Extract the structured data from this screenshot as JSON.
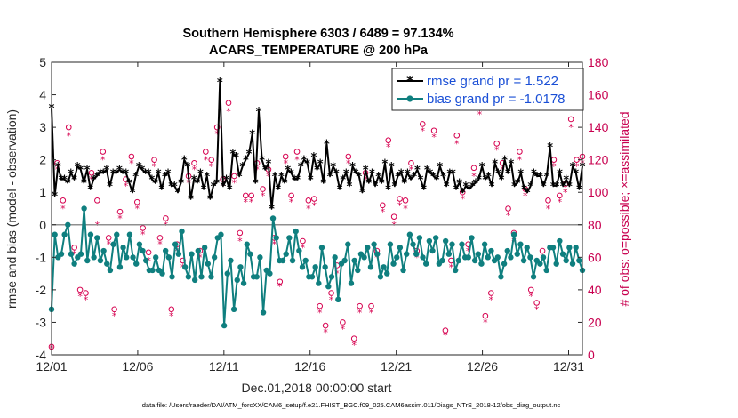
{
  "chart_data": {
    "type": "line",
    "title": "Southern Hemisphere 6303 / 6489 = 97.134%",
    "subtitle": "ACARS_TEMPERATURE @ 200 hPa",
    "xlabel": "Dec.01,2018 00:00:00 start",
    "ylabel": "rmse and bias (model - observation)",
    "ylabel_right": "# of obs: o=possible; ×=assimilated",
    "ylim": [
      -4,
      5
    ],
    "ylim_right": [
      0,
      180
    ],
    "x_tick_labels": [
      "12/01",
      "12/06",
      "12/11",
      "12/16",
      "12/21",
      "12/26",
      "12/31"
    ],
    "x_tick_days": [
      0,
      5,
      10,
      15,
      20,
      25,
      30
    ],
    "y_ticks": [
      "-4",
      "-3",
      "-2",
      "-1",
      "0",
      "1",
      "2",
      "3",
      "4",
      "5"
    ],
    "y_ticks_right": [
      "0",
      "20",
      "40",
      "60",
      "80",
      "100",
      "120",
      "140",
      "160",
      "180"
    ],
    "xlim_days": [
      0,
      30.8
    ],
    "legend": [
      "rmse grand pr = 1.522",
      "bias grand pr = -1.0178"
    ],
    "series": [
      {
        "name": "rmse grand pr = 1.522",
        "color": "#000000",
        "values": [
          3.6,
          0.9,
          1.8,
          1.4,
          1.4,
          1.3,
          1.6,
          1.4,
          1.8,
          1.7,
          1.3,
          1.7,
          1.1,
          1.4,
          1.5,
          1.6,
          1.6,
          1.7,
          1.2,
          1.6,
          1.6,
          1.7,
          1.6,
          1.6,
          1.3,
          1.0,
          1.5,
          1.8,
          1.7,
          1.6,
          1.6,
          1.4,
          1.3,
          1.6,
          1.1,
          1.5,
          1.6,
          1.2,
          1.2,
          1.0,
          1.3,
          2.0,
          1.8,
          0.8,
          1.4,
          1.3,
          1.6,
          1.1,
          1.5,
          0.8,
          1.2,
          1.3,
          4.4,
          1.2,
          1.4,
          1.1,
          2.2,
          2.1,
          1.5,
          1.8,
          2.0,
          2.2,
          2.8,
          1.3,
          3.5,
          2.0,
          1.7,
          1.9,
          0.5,
          1.5,
          1.1,
          1.5,
          1.3,
          1.7,
          1.6,
          1.4,
          1.4,
          1.8,
          2.0,
          1.9,
          1.4,
          2.1,
          1.7,
          1.9,
          1.3,
          2.5,
          1.5,
          1.8,
          1.6,
          1.1,
          1.4,
          1.6,
          1.2,
          1.8,
          1.6,
          1.5,
          1.0,
          1.7,
          1.3,
          1.6,
          1.2,
          1.5,
          1.3,
          1.9,
          1.1,
          1.8,
          1.2,
          1.5,
          1.6,
          1.3,
          1.6,
          1.4,
          1.5,
          1.7,
          1.4,
          1.1,
          1.7,
          1.6,
          1.5,
          1.4,
          1.8,
          1.5,
          1.2,
          1.6,
          1.6,
          1.1,
          1.3,
          1.0,
          1.2,
          1.1,
          1.2,
          1.3,
          1.4,
          1.8,
          1.4,
          1.5,
          1.2,
          1.9,
          1.6,
          1.4,
          2.0,
          1.6,
          1.9,
          1.2,
          1.3,
          1.6,
          1.1,
          1.0,
          1.2,
          1.6,
          1.5,
          1.5,
          1.2,
          1.5,
          2.4,
          1.2,
          1.2,
          1.6,
          1.2,
          1.4,
          1.2,
          1.8,
          1.6,
          1.1,
          1.8
        ]
      },
      {
        "name": "bias grand pr = -1.0178",
        "color": "#0f7f7f",
        "values": [
          -2.6,
          -0.3,
          -1.0,
          -0.9,
          -0.3,
          0.0,
          -0.9,
          -1.2,
          -1.0,
          -0.9,
          0.5,
          -1.1,
          -0.3,
          -1.0,
          -0.4,
          -1.1,
          -0.8,
          -1.2,
          -1.4,
          -0.6,
          -0.3,
          -1.3,
          -0.7,
          -1.0,
          -0.3,
          -1.0,
          -1.2,
          -0.6,
          -0.8,
          -1.1,
          -1.4,
          -1.4,
          -1.0,
          -1.4,
          -1.5,
          -0.8,
          -1.0,
          -1.6,
          -0.6,
          -0.9,
          -0.2,
          -1.3,
          -1.6,
          -0.9,
          -1.7,
          -0.8,
          -1.6,
          -0.7,
          -1.2,
          -1.6,
          -1.0,
          -0.4,
          -0.3,
          -3.1,
          -1.5,
          -1.1,
          -2.6,
          -1.7,
          -1.3,
          -1.8,
          -0.6,
          -0.9,
          -1.6,
          -1.6,
          -1.0,
          -2.7,
          -1.4,
          -1.5,
          0.2,
          -0.4,
          -1.1,
          -1.1,
          -0.9,
          -0.4,
          -1.1,
          -0.2,
          -0.8,
          -1.3,
          -1.1,
          -1.6,
          -1.6,
          -1.3,
          -1.8,
          -0.7,
          -1.3,
          -1.9,
          -1.6,
          -1.0,
          -2.3,
          -1.2,
          -1.1,
          -0.6,
          -1.8,
          -1.1,
          -1.4,
          -0.9,
          -1.0,
          -0.7,
          -1.3,
          -0.6,
          -0.9,
          -1.6,
          -1.3,
          -1.5,
          -0.6,
          -1.2,
          -1.0,
          -0.7,
          -1.4,
          -0.9,
          -0.3,
          -0.6,
          -0.9,
          -0.4,
          -1.0,
          -1.2,
          -0.5,
          -0.8,
          -0.4,
          -1.2,
          -1.1,
          -0.5,
          -0.9,
          -0.6,
          -1.4,
          -1.1,
          -0.6,
          -1.0,
          -1.0,
          -0.4,
          -1.1,
          -0.9,
          -1.2,
          -0.6,
          -1.0,
          -0.8,
          -1.1,
          -1.0,
          -1.6,
          -1.2,
          -0.8,
          -1.0,
          -0.3,
          -0.9,
          -0.6,
          -1.1,
          -0.7,
          -1.0,
          -1.6,
          -1.1,
          -1.2,
          -1.0,
          -1.4,
          -0.7,
          -0.7,
          -1.2,
          -0.5,
          -0.9,
          -1.1,
          -0.7,
          -1.2,
          -0.7,
          -1.1,
          -1.4
        ]
      }
    ],
    "obs_possible": [
      5,
      118,
      95,
      140,
      66,
      40,
      38,
      112,
      95,
      125,
      72,
      28,
      88,
      108,
      122,
      94,
      78,
      63,
      120,
      72,
      84,
      28,
      68,
      58,
      110,
      118,
      64,
      125,
      120,
      140,
      108,
      155,
      110,
      75,
      98,
      98,
      118,
      102,
      114,
      72,
      45,
      122,
      98,
      125,
      70,
      95,
      96,
      30,
      18,
      38,
      55,
      20,
      122,
      10,
      30,
      112,
      30,
      64,
      92,
      132,
      85,
      96,
      95,
      118,
      64,
      142,
      165,
      138,
      160,
      15,
      58,
      135,
      100,
      68,
      115,
      152,
      24,
      38,
      130,
      118,
      90,
      75,
      125,
      102,
      40,
      32,
      64,
      95,
      120,
      98,
      105,
      145,
      120,
      122
    ],
    "obs_assimilated": [
      4,
      114,
      90,
      135,
      62,
      36,
      34,
      108,
      80,
      120,
      68,
      24,
      84,
      104,
      118,
      90,
      74,
      58,
      116,
      68,
      80,
      24,
      64,
      54,
      106,
      114,
      60,
      120,
      116,
      136,
      104,
      150,
      106,
      70,
      94,
      94,
      114,
      98,
      110,
      68,
      42,
      118,
      94,
      120,
      66,
      90,
      92,
      26,
      14,
      34,
      50,
      16,
      118,
      6,
      26,
      108,
      26,
      60,
      88,
      128,
      80,
      92,
      90,
      114,
      60,
      138,
      160,
      134,
      155,
      12,
      54,
      130,
      96,
      64,
      110,
      148,
      20,
      34,
      126,
      114,
      86,
      70,
      120,
      98,
      36,
      28,
      60,
      90,
      116,
      94,
      100,
      140,
      116,
      118
    ]
  },
  "footer": "data file: /Users/raeder/DAI/ATM_forcXX/CAM6_setup/f.e21.FHIST_BGC.f09_025.CAM6assim.011/Diags_NTrS_2018-12/obs_diag_output.nc"
}
